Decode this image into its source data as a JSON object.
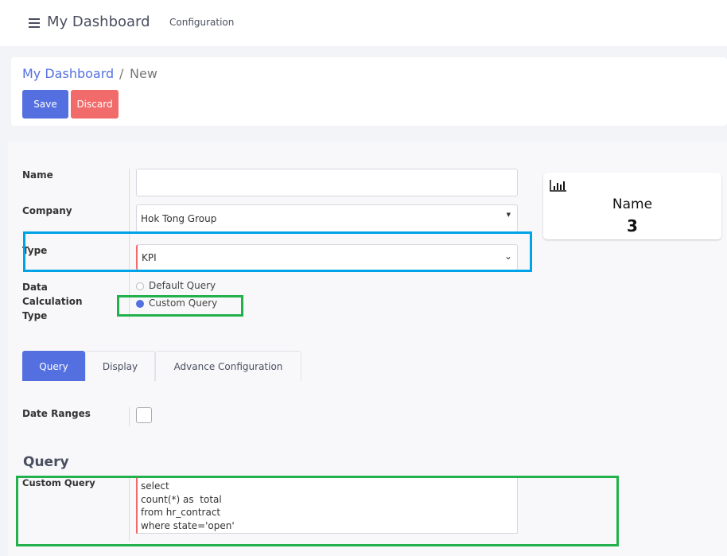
{
  "header": {
    "title": "My Dashboard",
    "nav_items": [
      "Configuration"
    ],
    "menu_icon": "hamburger-icon"
  },
  "breadcrumb": {
    "parent": "My Dashboard",
    "separator": "/",
    "current": "New"
  },
  "toolbar": {
    "save_label": "Save",
    "discard_label": "Discard"
  },
  "form": {
    "name": {
      "label": "Name",
      "value": ""
    },
    "company": {
      "label": "Company",
      "value": "Hok Tong Group"
    },
    "type": {
      "label": "Type",
      "value": "KPI"
    },
    "calc_type": {
      "label": "Data Calculation Type",
      "options": [
        {
          "label": "Default Query",
          "selected": false
        },
        {
          "label": "Custom Query",
          "selected": true
        }
      ]
    }
  },
  "tabs": [
    {
      "label": "Query",
      "active": true
    },
    {
      "label": "Display",
      "active": false
    },
    {
      "label": "Advance Configuration",
      "active": false
    }
  ],
  "query_tab": {
    "date_ranges": {
      "label": "Date Ranges",
      "checked": false
    },
    "section_title": "Query",
    "custom_query": {
      "label": "Custom Query",
      "lines": [
        "select",
        "count(*) as  total",
        "from hr_contract",
        "where state='open'"
      ]
    }
  },
  "preview": {
    "icon": "bar-chart-icon",
    "name": "Name",
    "value": "3"
  },
  "colors": {
    "accent": "#5470e0",
    "danger": "#f16b6b",
    "highlight_blue": "#00a3e8",
    "highlight_green": "#22b14c"
  }
}
